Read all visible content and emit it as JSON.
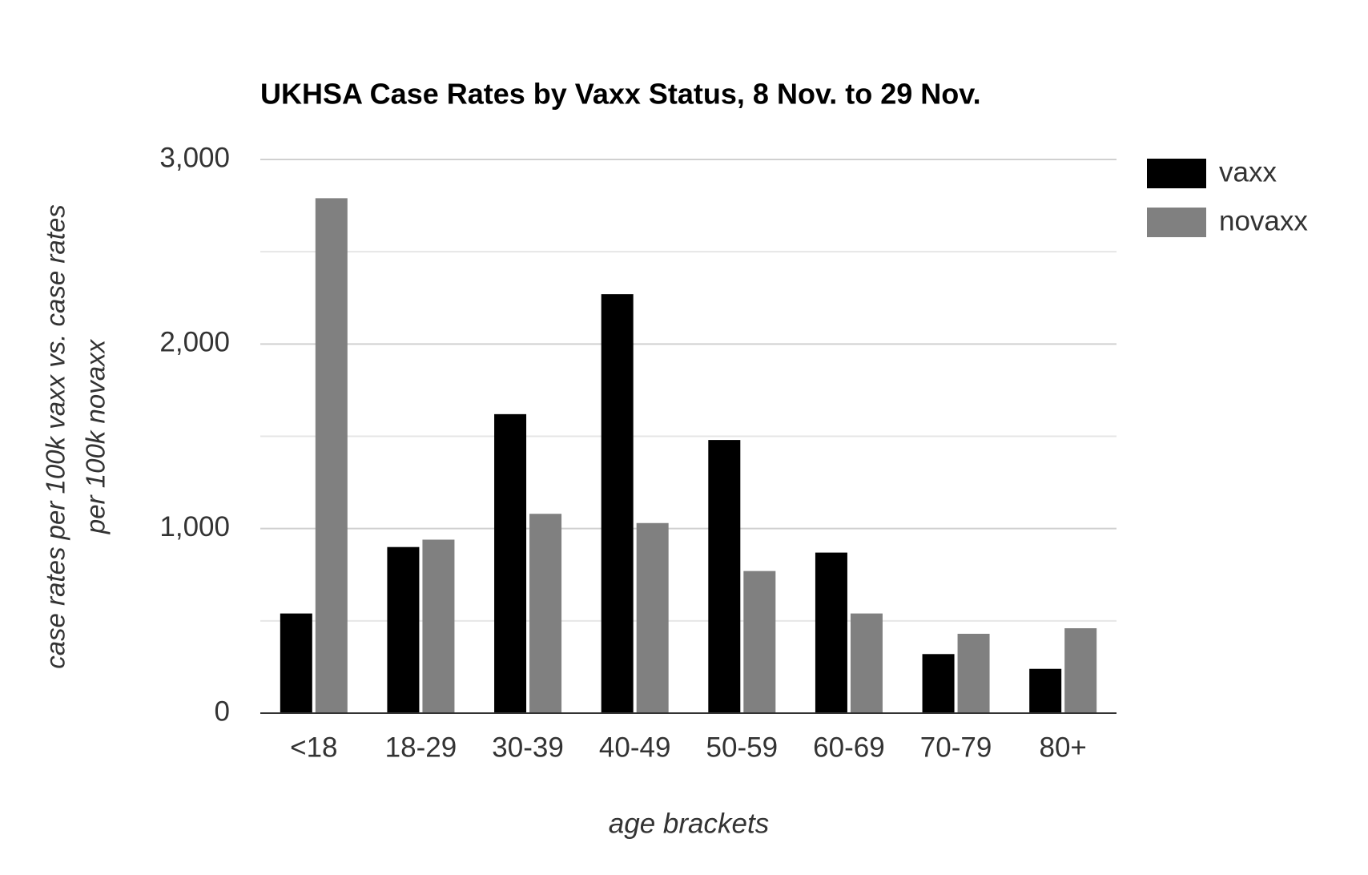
{
  "chart_data": {
    "type": "bar",
    "title": "UKHSA Case Rates by Vaxx Status, 8 Nov. to 29 Nov.",
    "xlabel": "age brackets",
    "ylabel": [
      "case rates per 100k vaxx vs. case rates",
      "per 100k novaxx"
    ],
    "categories": [
      "<18",
      "18-29",
      "30-39",
      "40-49",
      "50-59",
      "60-69",
      "70-79",
      "80+"
    ],
    "series": [
      {
        "name": "vaxx",
        "color": "#000000",
        "values": [
          540,
          900,
          1620,
          2270,
          1480,
          870,
          320,
          240
        ]
      },
      {
        "name": "novaxx",
        "color": "#808080",
        "values": [
          2790,
          940,
          1080,
          1030,
          770,
          540,
          430,
          460
        ]
      }
    ],
    "ylim": [
      0,
      3000
    ],
    "yticks": [
      0,
      {
        "value": 1000,
        "label": "1,000"
      },
      {
        "value": 2000,
        "label": "2,000"
      },
      {
        "value": 3000,
        "label": "3,000"
      }
    ],
    "minor_yticks": [
      500,
      1500,
      2500
    ],
    "grid": true,
    "legend": "right"
  }
}
